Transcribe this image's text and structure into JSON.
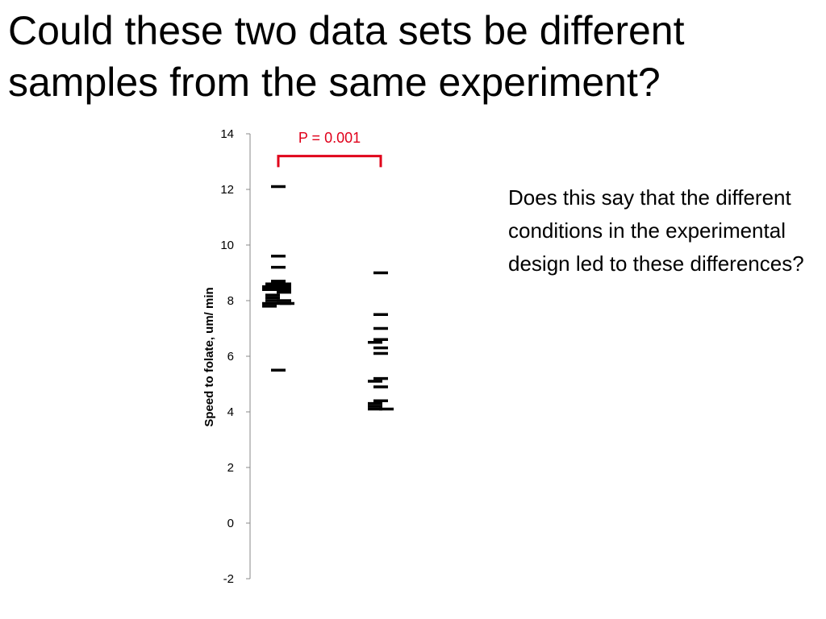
{
  "slide": {
    "title": "Could these two data sets be different samples from the same experiment?",
    "side_text": "Does this say that the different conditions in the experimental design led to these differences?"
  },
  "chart_data": {
    "type": "scatter",
    "title": "",
    "xlabel": "",
    "ylabel": "Speed to folate, um/ min",
    "ylim": [
      -2,
      14
    ],
    "yticks": [
      -2,
      0,
      2,
      4,
      6,
      8,
      10,
      12,
      14
    ],
    "grid": false,
    "legend": "none",
    "marker": "horizontal-dash",
    "marker_color": "#000000",
    "series": [
      {
        "x": [
          1,
          1,
          1,
          1,
          1,
          1,
          1,
          1,
          1,
          1,
          1,
          1,
          1,
          1,
          1,
          1,
          1,
          1,
          1,
          1
        ],
        "values": [
          12.1,
          9.6,
          9.2,
          8.7,
          8.6,
          8.6,
          8.5,
          8.5,
          8.4,
          8.4,
          8.3,
          8.2,
          8.1,
          8.0,
          8.0,
          7.9,
          7.9,
          7.9,
          7.8,
          5.5
        ]
      },
      {
        "x": [
          2,
          2,
          2,
          2,
          2,
          2,
          2,
          2,
          2,
          2,
          2,
          2,
          2,
          2,
          2
        ],
        "values": [
          9.0,
          7.5,
          7.0,
          6.6,
          6.5,
          6.3,
          6.1,
          5.2,
          5.1,
          4.9,
          4.4,
          4.3,
          4.2,
          4.1,
          4.1
        ]
      }
    ],
    "annotation": {
      "text": "P = 0.001",
      "between": [
        1,
        2
      ],
      "color": "#e0001a"
    }
  }
}
